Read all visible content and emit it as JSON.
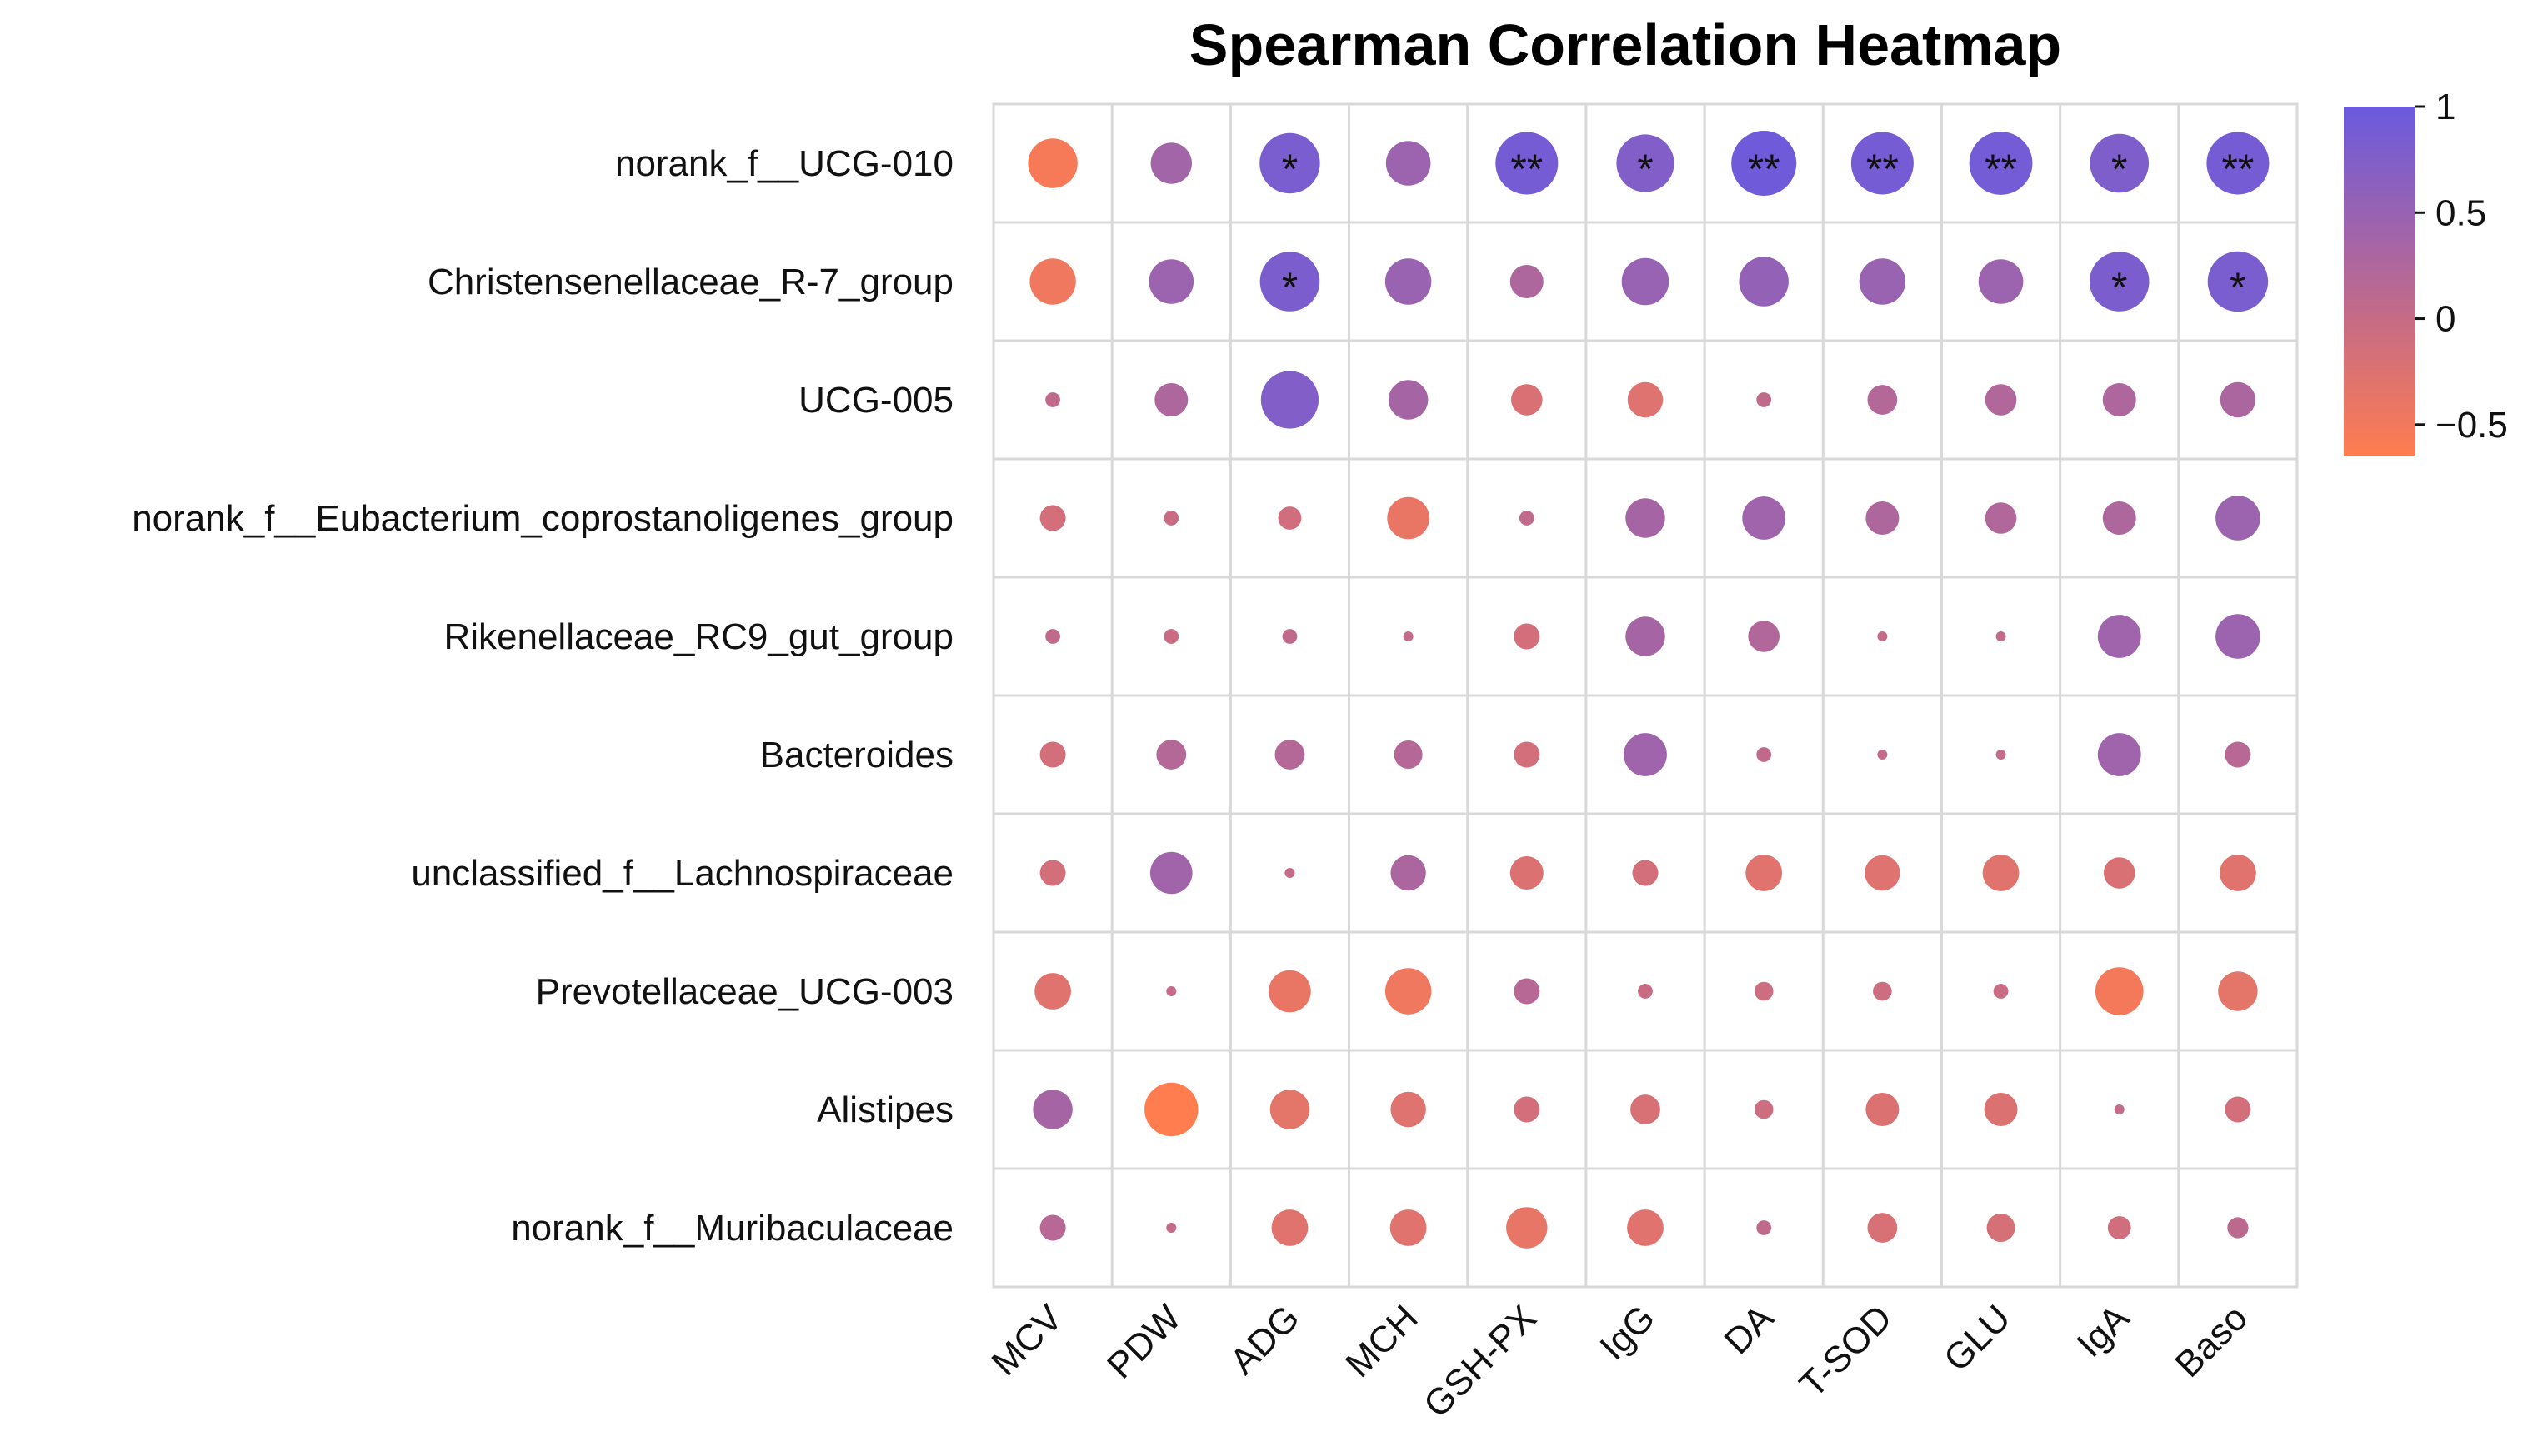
{
  "chart_data": {
    "type": "heatmap",
    "title": "Spearman Correlation Heatmap",
    "columns": [
      "MCV",
      "PDW",
      "ADG",
      "MCH",
      "GSH-PX",
      "IgG",
      "DA",
      "T-SOD",
      "GLU",
      "IgA",
      "Baso"
    ],
    "rows": [
      "norank_f__UCG-010",
      "Christensenellaceae_R-7_group",
      "UCG-005",
      "norank_f__Eubacterium_coprostanoligenes_group",
      "Rikenellaceae_RC9_gut_group",
      "Bacteroides",
      "unclassified_f__Lachnospiraceae",
      "Prevotellaceae_UCG-003",
      "Alistipes",
      "norank_f__Muribaculaceae"
    ],
    "values": [
      [
        -0.55,
        0.38,
        0.82,
        0.45,
        0.88,
        0.75,
        0.95,
        0.88,
        0.9,
        0.78,
        0.88
      ],
      [
        -0.48,
        0.45,
        0.8,
        0.48,
        0.25,
        0.5,
        0.55,
        0.48,
        0.45,
        0.8,
        0.82
      ],
      [
        0.05,
        0.25,
        0.75,
        0.35,
        -0.22,
        -0.28,
        0.05,
        0.2,
        0.22,
        0.25,
        0.28
      ],
      [
        -0.15,
        -0.05,
        -0.12,
        -0.4,
        0.05,
        0.35,
        0.42,
        0.25,
        0.22,
        0.25,
        0.45
      ],
      [
        0.05,
        -0.05,
        0.05,
        0.02,
        -0.15,
        0.35,
        0.22,
        0.02,
        0.02,
        0.42,
        0.45
      ],
      [
        -0.15,
        0.2,
        0.2,
        0.18,
        -0.15,
        0.42,
        0.05,
        0.02,
        0.02,
        0.42,
        0.15
      ],
      [
        -0.15,
        0.4,
        0.02,
        0.28,
        -0.25,
        -0.15,
        -0.3,
        -0.28,
        -0.3,
        -0.22,
        -0.3
      ],
      [
        -0.3,
        0.02,
        -0.4,
        -0.48,
        0.15,
        -0.05,
        -0.08,
        -0.08,
        -0.05,
        -0.52,
        -0.35
      ],
      [
        0.35,
        -0.65,
        -0.35,
        -0.28,
        -0.15,
        -0.2,
        -0.08,
        -0.25,
        -0.25,
        0.02,
        -0.15
      ],
      [
        0.15,
        0.02,
        -0.3,
        -0.3,
        -0.38,
        -0.3,
        0.05,
        -0.2,
        -0.18,
        -0.12,
        0.1
      ]
    ],
    "significance": [
      [
        "",
        "",
        "*",
        "",
        "**",
        "*",
        "**",
        "**",
        "**",
        "*",
        "**"
      ],
      [
        "",
        "",
        "*",
        "",
        "",
        "",
        "",
        "",
        "",
        "*",
        "*"
      ],
      [
        "",
        "",
        "",
        "",
        "",
        "",
        "",
        "",
        "",
        "",
        ""
      ],
      [
        "",
        "",
        "",
        "",
        "",
        "",
        "",
        "",
        "",
        "",
        ""
      ],
      [
        "",
        "",
        "",
        "",
        "",
        "",
        "",
        "",
        "",
        "",
        ""
      ],
      [
        "",
        "",
        "",
        "",
        "",
        "",
        "",
        "",
        "",
        "",
        ""
      ],
      [
        "",
        "",
        "",
        "",
        "",
        "",
        "",
        "",
        "",
        "",
        ""
      ],
      [
        "",
        "",
        "",
        "",
        "",
        "",
        "",
        "",
        "",
        "",
        ""
      ],
      [
        "",
        "",
        "",
        "",
        "",
        "",
        "",
        "",
        "",
        "",
        ""
      ],
      [
        "",
        "",
        "",
        "",
        "",
        "",
        "",
        "",
        "",
        "",
        ""
      ]
    ],
    "colorbar": {
      "min": -0.65,
      "max": 1.0,
      "ticks": [
        1,
        0.5,
        0,
        -0.5
      ],
      "tick_labels": [
        "1",
        "0.5",
        "0",
        "−0.5"
      ],
      "color_high": "#6a5ade",
      "color_mid": "#c56b87",
      "color_low": "#ff7d4f"
    }
  }
}
